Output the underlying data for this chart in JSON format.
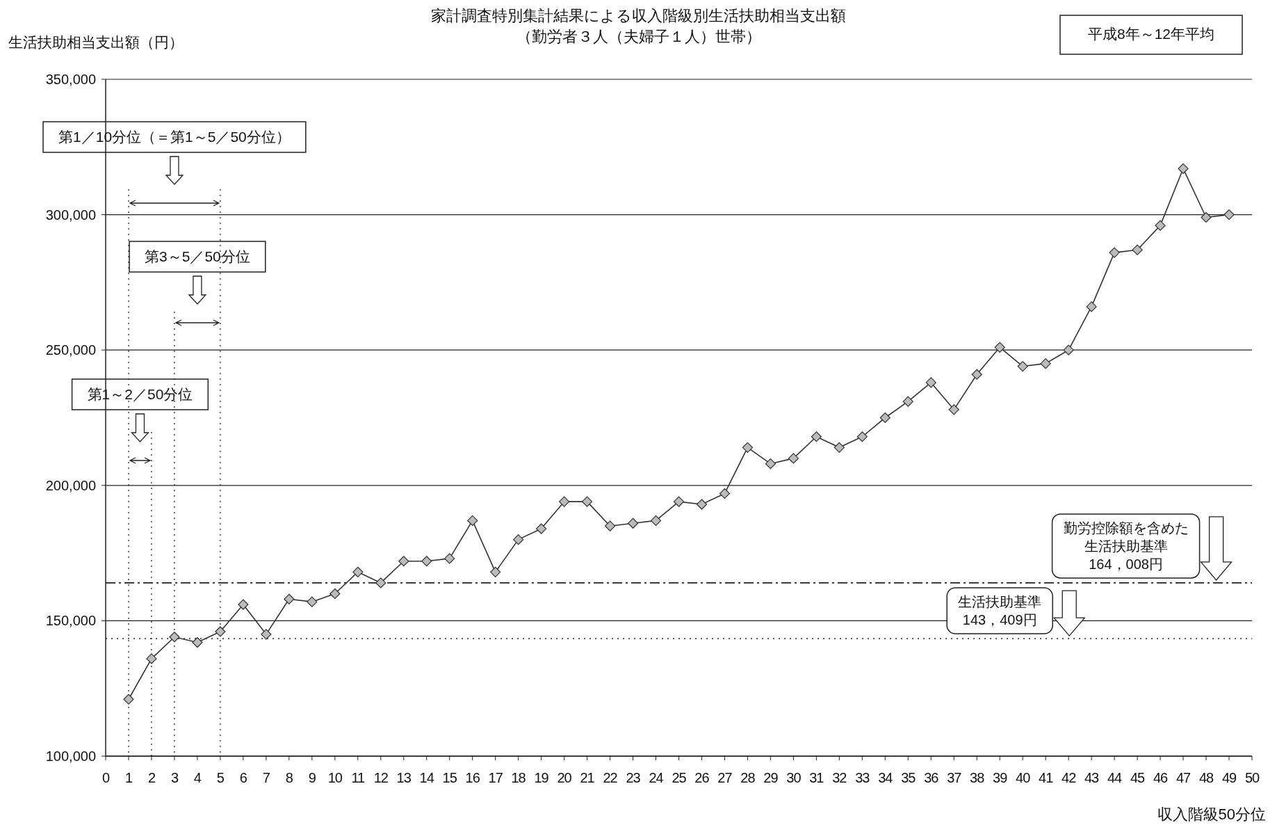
{
  "chart_data": {
    "type": "line",
    "title": "家計調査特別集計結果による収入階級別生活扶助相当支出額",
    "subtitle": "（勤労者３人（夫婦子１人）世帯）",
    "xlabel": "収入階級50分位",
    "ylabel": "生活扶助相当支出額（円）",
    "annotations": [
      "平成8年～12年平均",
      "第1／10分位（＝第1～5／50分位）",
      "第3～5／50分位",
      "第1～2／50分位"
    ],
    "x": [
      1,
      2,
      3,
      4,
      5,
      6,
      7,
      8,
      9,
      10,
      11,
      12,
      13,
      14,
      15,
      16,
      17,
      18,
      19,
      20,
      21,
      22,
      23,
      24,
      25,
      26,
      27,
      28,
      29,
      30,
      31,
      32,
      33,
      34,
      35,
      36,
      37,
      38,
      39,
      40,
      41,
      42,
      43,
      44,
      45,
      46,
      47,
      48,
      49
    ],
    "series": [
      {
        "color": "#333333",
        "values": [
          121000,
          136000,
          144000,
          142000,
          146000,
          156000,
          145000,
          158000,
          157000,
          160000,
          168000,
          164000,
          172000,
          172000,
          173000,
          187000,
          168000,
          180000,
          184000,
          194000,
          194000,
          185000,
          186000,
          187000,
          194000,
          193000,
          197000,
          214000,
          208000,
          210000,
          218000,
          214000,
          218000,
          225000,
          231000,
          238000,
          228000,
          241000,
          251000,
          244000,
          245000,
          250000,
          266000,
          286000,
          287000,
          296000,
          317000,
          299000,
          300000
        ]
      }
    ],
    "xlim": [
      0,
      50
    ],
    "xticks": [
      0,
      1,
      2,
      3,
      4,
      5,
      6,
      7,
      8,
      9,
      10,
      11,
      12,
      13,
      14,
      15,
      16,
      17,
      18,
      19,
      20,
      21,
      22,
      23,
      24,
      25,
      26,
      27,
      28,
      29,
      30,
      31,
      32,
      33,
      34,
      35,
      36,
      37,
      38,
      39,
      40,
      41,
      42,
      43,
      44,
      45,
      46,
      47,
      48,
      49,
      50
    ],
    "ylim": [
      100000,
      350000
    ],
    "yticks": [
      {
        "value": 100000,
        "label": "100,000"
      },
      {
        "value": 150000,
        "label": "150,000"
      },
      {
        "value": 200000,
        "label": "200,000"
      },
      {
        "value": 250000,
        "label": "250,000"
      },
      {
        "value": 300000,
        "label": "300,000"
      },
      {
        "value": 350000,
        "label": "350,000"
      }
    ],
    "grid": "y",
    "marker": "diamond",
    "ref_lines": [
      {
        "axis": "y",
        "value": 164008,
        "label": "勤労控除額を含めた生活扶助基準\n164，008円",
        "line_style": "dashed",
        "color": "#222222"
      },
      {
        "axis": "y",
        "value": 143409,
        "label": "生活扶助基準\n143，409円",
        "line_style": "dotted",
        "color": "#222222"
      },
      {
        "axis": "x",
        "value": 1,
        "line_style": "dotted",
        "color": "#222222"
      },
      {
        "axis": "x",
        "value": 2,
        "line_style": "dotted",
        "color": "#222222"
      },
      {
        "axis": "x",
        "value": 3,
        "line_style": "dotted",
        "color": "#222222"
      },
      {
        "axis": "x",
        "value": 5,
        "line_style": "dotted",
        "color": "#222222"
      }
    ]
  }
}
